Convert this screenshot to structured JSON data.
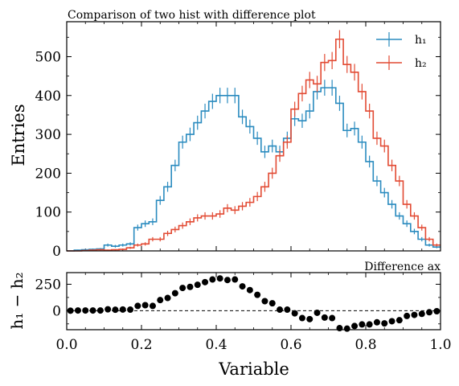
{
  "chart_data": [
    {
      "type": "line",
      "title": "Comparison of two hist with difference plot",
      "ylabel": "Entries",
      "xlim": [
        0,
        1
      ],
      "ylim": [
        0,
        590
      ],
      "xticks": [
        0.0,
        0.2,
        0.4,
        0.6,
        0.8,
        1.0
      ],
      "yticks": [
        0,
        100,
        200,
        300,
        400,
        500
      ],
      "ytick_labels": [
        "0",
        "100",
        "200",
        "300",
        "400",
        "500"
      ],
      "legend_position": "top-right",
      "bin_width": 0.02,
      "bin_centers": [
        0.01,
        0.03,
        0.05,
        0.07,
        0.09,
        0.11,
        0.13,
        0.15,
        0.17,
        0.19,
        0.21,
        0.23,
        0.25,
        0.27,
        0.29,
        0.31,
        0.33,
        0.35,
        0.37,
        0.39,
        0.41,
        0.43,
        0.45,
        0.47,
        0.49,
        0.51,
        0.53,
        0.55,
        0.57,
        0.59,
        0.61,
        0.63,
        0.65,
        0.67,
        0.69,
        0.71,
        0.73,
        0.75,
        0.77,
        0.79,
        0.81,
        0.83,
        0.85,
        0.87,
        0.89,
        0.91,
        0.93,
        0.95,
        0.97,
        0.99
      ],
      "series": [
        {
          "name": "h₁",
          "color": "#2a8bbf",
          "values": [
            0,
            2,
            3,
            4,
            5,
            15,
            12,
            15,
            18,
            60,
            70,
            75,
            130,
            165,
            220,
            280,
            300,
            330,
            360,
            385,
            400,
            400,
            400,
            345,
            320,
            290,
            255,
            270,
            255,
            290,
            340,
            335,
            360,
            410,
            420,
            420,
            380,
            310,
            315,
            280,
            230,
            180,
            150,
            120,
            90,
            70,
            50,
            30,
            15,
            10
          ]
        },
        {
          "name": "h₂",
          "color": "#e24a33",
          "values": [
            0,
            0,
            1,
            2,
            3,
            2,
            3,
            4,
            8,
            15,
            18,
            30,
            30,
            45,
            55,
            65,
            75,
            85,
            90,
            90,
            95,
            110,
            105,
            115,
            125,
            140,
            165,
            200,
            245,
            280,
            365,
            405,
            440,
            430,
            485,
            490,
            545,
            480,
            460,
            410,
            360,
            290,
            270,
            220,
            180,
            120,
            90,
            60,
            30,
            15
          ]
        }
      ]
    },
    {
      "type": "scatter",
      "title": "Difference ax",
      "xlabel": "Variable",
      "ylabel": "h₁ − h₂",
      "xlim": [
        0,
        1
      ],
      "ylim": [
        -180,
        360
      ],
      "xticks": [
        0.0,
        0.2,
        0.4,
        0.6,
        0.8,
        1.0
      ],
      "xtick_labels": [
        "0.0",
        "0.2",
        "0.4",
        "0.6",
        "0.8",
        "1.0"
      ],
      "yticks": [
        0,
        250
      ],
      "ytick_labels": [
        "0",
        "250"
      ],
      "reference_line": 0,
      "x": [
        0.01,
        0.03,
        0.05,
        0.07,
        0.09,
        0.11,
        0.13,
        0.15,
        0.17,
        0.19,
        0.21,
        0.23,
        0.25,
        0.27,
        0.29,
        0.31,
        0.33,
        0.35,
        0.37,
        0.39,
        0.41,
        0.43,
        0.45,
        0.47,
        0.49,
        0.51,
        0.53,
        0.55,
        0.57,
        0.59,
        0.61,
        0.63,
        0.65,
        0.67,
        0.69,
        0.71,
        0.73,
        0.75,
        0.77,
        0.79,
        0.81,
        0.83,
        0.85,
        0.87,
        0.89,
        0.91,
        0.93,
        0.95,
        0.97,
        0.99
      ],
      "y": [
        0,
        2,
        2,
        2,
        2,
        13,
        9,
        11,
        10,
        45,
        52,
        45,
        100,
        120,
        165,
        215,
        225,
        245,
        270,
        295,
        305,
        290,
        295,
        230,
        195,
        150,
        90,
        70,
        10,
        10,
        -25,
        -70,
        -80,
        -20,
        -65,
        -70,
        -165,
        -170,
        -145,
        -130,
        -130,
        -110,
        -120,
        -100,
        -90,
        -50,
        -40,
        -30,
        -15,
        -5
      ]
    }
  ]
}
